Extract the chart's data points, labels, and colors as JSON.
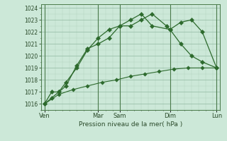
{
  "xlabel": "Pression niveau de la mer( hPa )",
  "background_color": "#cce8d8",
  "grid_color_major": "#90b8a0",
  "grid_color_minor": "#b0d0bc",
  "line_color": "#2d6a2d",
  "ylim": [
    1015.5,
    1024.3
  ],
  "yticks": [
    1016,
    1017,
    1018,
    1019,
    1020,
    1021,
    1022,
    1023,
    1024
  ],
  "xlim": [
    0,
    25
  ],
  "day_positions": [
    0.5,
    8,
    11,
    18,
    24.5
  ],
  "day_names": [
    "Ven",
    "Mar",
    "Sam",
    "Dim",
    "Lun"
  ],
  "vline_positions": [
    0.5,
    8,
    11,
    18,
    24.5
  ],
  "line1_x": [
    0.5,
    1.5,
    2.5,
    3.5,
    5.0,
    6.5,
    8.0,
    9.5,
    11.0,
    12.5,
    14.0,
    15.5,
    17.5,
    18.0,
    19.5,
    21.0,
    22.5,
    24.5
  ],
  "line1_y": [
    1016.0,
    1017.0,
    1017.0,
    1017.8,
    1019.0,
    1020.5,
    1021.5,
    1022.2,
    1022.5,
    1022.5,
    1023.0,
    1023.5,
    1022.5,
    1022.2,
    1022.8,
    1023.0,
    1022.0,
    1019.0
  ],
  "line2_x": [
    0.5,
    1.5,
    2.5,
    3.5,
    5.0,
    6.5,
    8.0,
    9.5,
    11.0,
    12.5,
    14.0,
    15.5,
    18.0,
    19.5,
    21.0,
    22.5,
    24.5
  ],
  "line2_y": [
    1016.0,
    1016.5,
    1017.0,
    1017.5,
    1019.2,
    1020.6,
    1021.0,
    1021.5,
    1022.5,
    1023.0,
    1023.5,
    1022.5,
    1022.2,
    1021.0,
    1020.0,
    1019.5,
    1019.0
  ],
  "line3_x": [
    0.5,
    2.5,
    4.5,
    6.5,
    8.5,
    10.5,
    12.5,
    14.5,
    16.5,
    18.5,
    20.5,
    22.5,
    24.5
  ],
  "line3_y": [
    1016.0,
    1016.8,
    1017.2,
    1017.5,
    1017.8,
    1018.0,
    1018.3,
    1018.5,
    1018.7,
    1018.9,
    1019.0,
    1019.0,
    1019.0
  ]
}
